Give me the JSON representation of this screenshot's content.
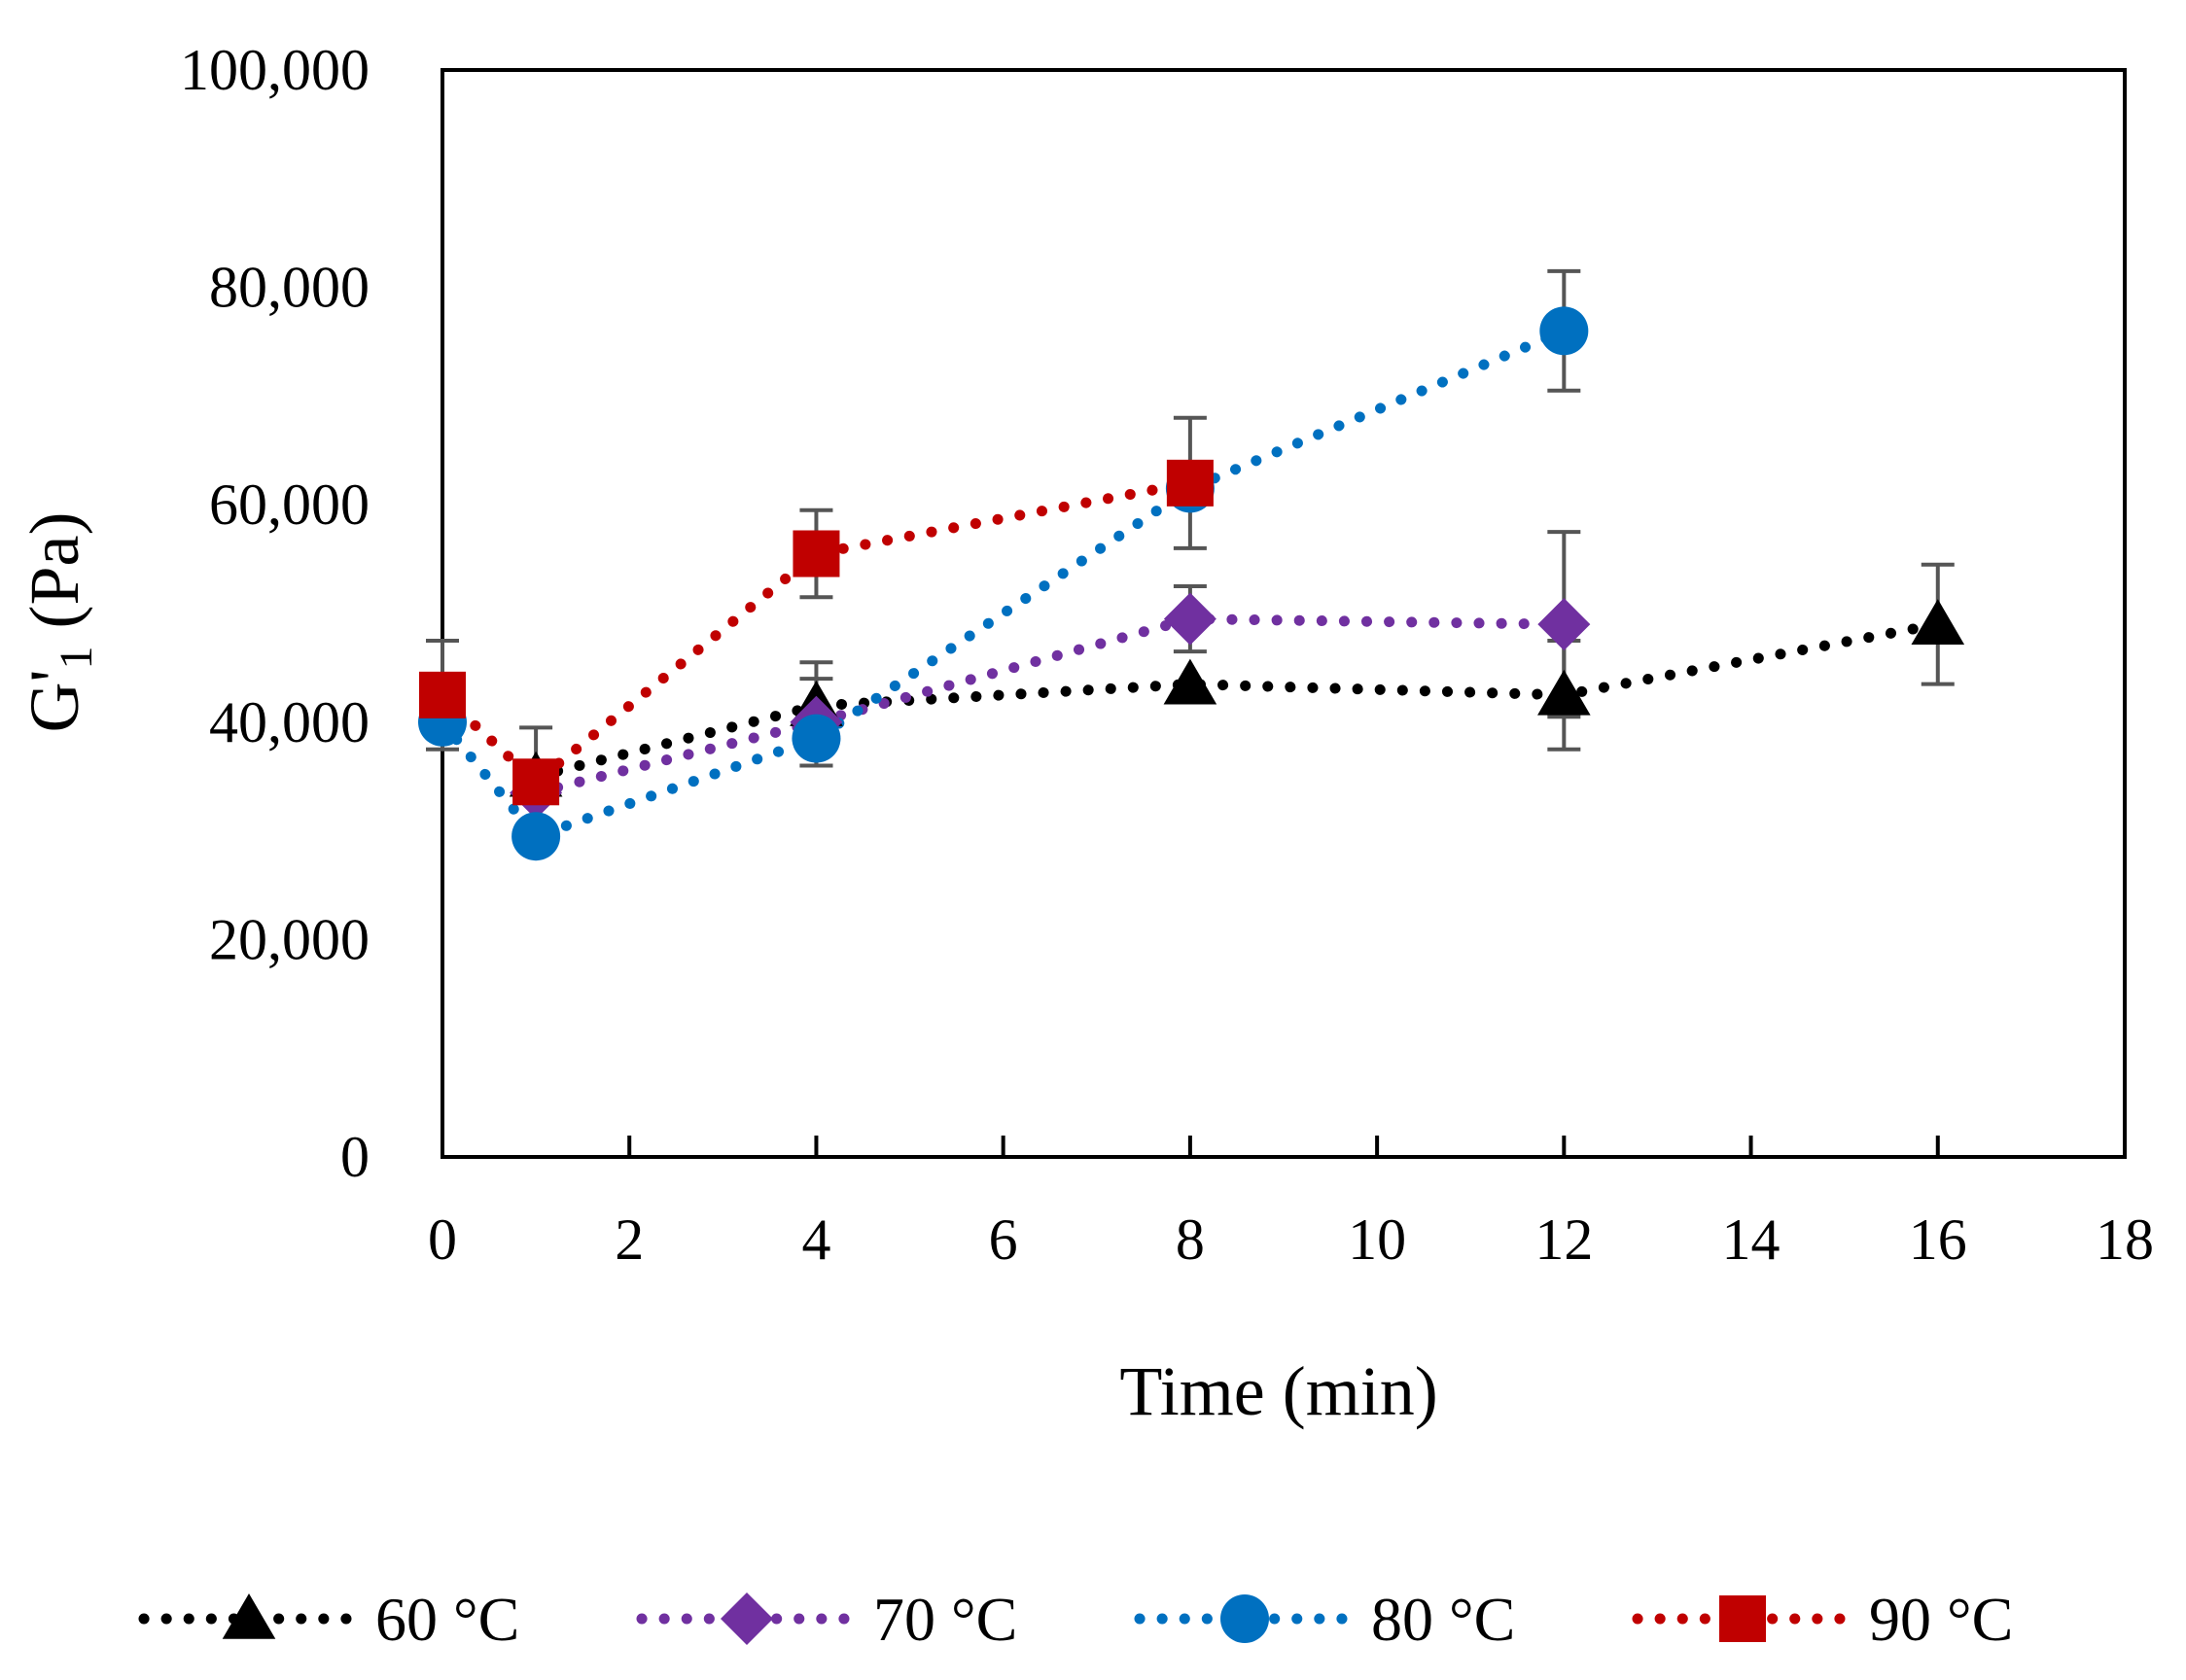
{
  "chart_data": {
    "type": "line",
    "title": "",
    "xlabel": "Time (min)",
    "ylabel": "G'1 (Pa)",
    "ylabel_parts": {
      "main": "G'",
      "sub": "1",
      "unit": " (Pa)"
    },
    "xlim": [
      0,
      18
    ],
    "ylim": [
      0,
      100000
    ],
    "xticks": [
      0,
      2,
      4,
      6,
      8,
      10,
      12,
      14,
      16,
      18
    ],
    "yticks": [
      0,
      20000,
      40000,
      60000,
      80000,
      100000
    ],
    "xtick_labels": [
      "0",
      "2",
      "4",
      "6",
      "8",
      "10",
      "12",
      "14",
      "16",
      "18"
    ],
    "ytick_labels": [
      "0",
      "20,000",
      "40,000",
      "60,000",
      "80,000",
      "100,000"
    ],
    "grid": false,
    "legend_position": "bottom",
    "error_bar_color": "#555555",
    "series": [
      {
        "name": "60 °C",
        "color": "#000000",
        "marker": "triangle",
        "x": [
          1,
          4,
          8,
          12,
          16
        ],
        "y": [
          35000,
          41500,
          43500,
          42500,
          49000
        ],
        "err": [
          null,
          4000,
          null,
          5000,
          5500
        ]
      },
      {
        "name": "70 °C",
        "color": "#7030A0",
        "marker": "diamond",
        "x": [
          1,
          4,
          8,
          12
        ],
        "y": [
          33500,
          40000,
          49500,
          49000
        ],
        "err": [
          null,
          4000,
          3000,
          8500
        ]
      },
      {
        "name": "80 °C",
        "color": "#0070C0",
        "marker": "circle",
        "x": [
          0,
          1,
          4,
          8,
          12
        ],
        "y": [
          40000,
          29500,
          38500,
          61500,
          76000
        ],
        "err": [
          null,
          null,
          2500,
          null,
          5500
        ]
      },
      {
        "name": "90 °C",
        "color": "#C00000",
        "marker": "square",
        "x": [
          0,
          1,
          4,
          8
        ],
        "y": [
          42500,
          34500,
          55500,
          62000
        ],
        "err": [
          5000,
          5000,
          4000,
          6000
        ]
      }
    ]
  }
}
